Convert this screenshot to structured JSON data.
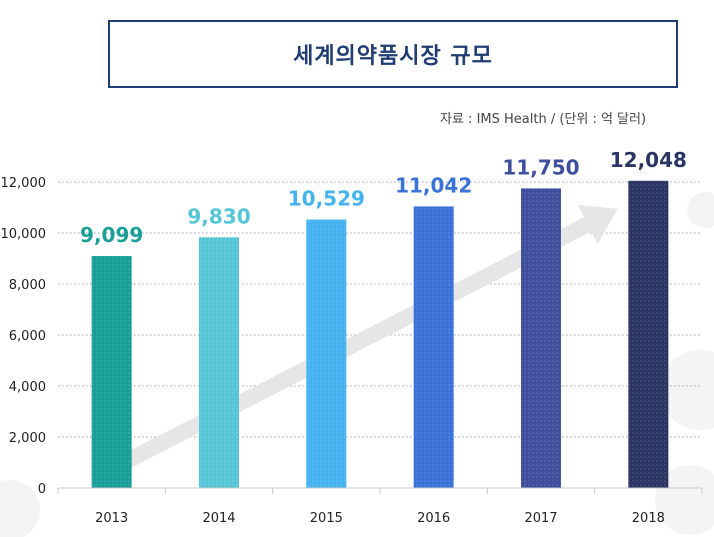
{
  "header": {
    "title": "세계의약품시장 규모",
    "source": "자료 : IMS Health / (단위 : 억 달러)"
  },
  "chart_data": {
    "type": "bar",
    "title": "세계의약품시장 규모",
    "categories": [
      "2013",
      "2014",
      "2015",
      "2016",
      "2017",
      "2018"
    ],
    "values": [
      9099,
      9830,
      10529,
      11042,
      11750,
      12048
    ],
    "data_labels": [
      "9,099",
      "9,830",
      "10,529",
      "11,042",
      "11,750",
      "12,048"
    ],
    "yticks": [
      "0",
      "2,000",
      "4,000",
      "6,000",
      "8,000",
      "10,000",
      "12,000"
    ],
    "ylim": [
      0,
      12000
    ],
    "xlabel": "",
    "ylabel": "",
    "unit": "억 달러",
    "grid": true,
    "colors": [
      "#1a9e98",
      "#56c6d6",
      "#45b3f0",
      "#3a72d8",
      "#3e4f9e",
      "#2a3563"
    ],
    "label_colors": [
      "#1a9e98",
      "#56c6d6",
      "#45b3f0",
      "#3a72d8",
      "#3e4f9e",
      "#2a3563"
    ],
    "trend_arrow_color": "#e6e6e6"
  }
}
